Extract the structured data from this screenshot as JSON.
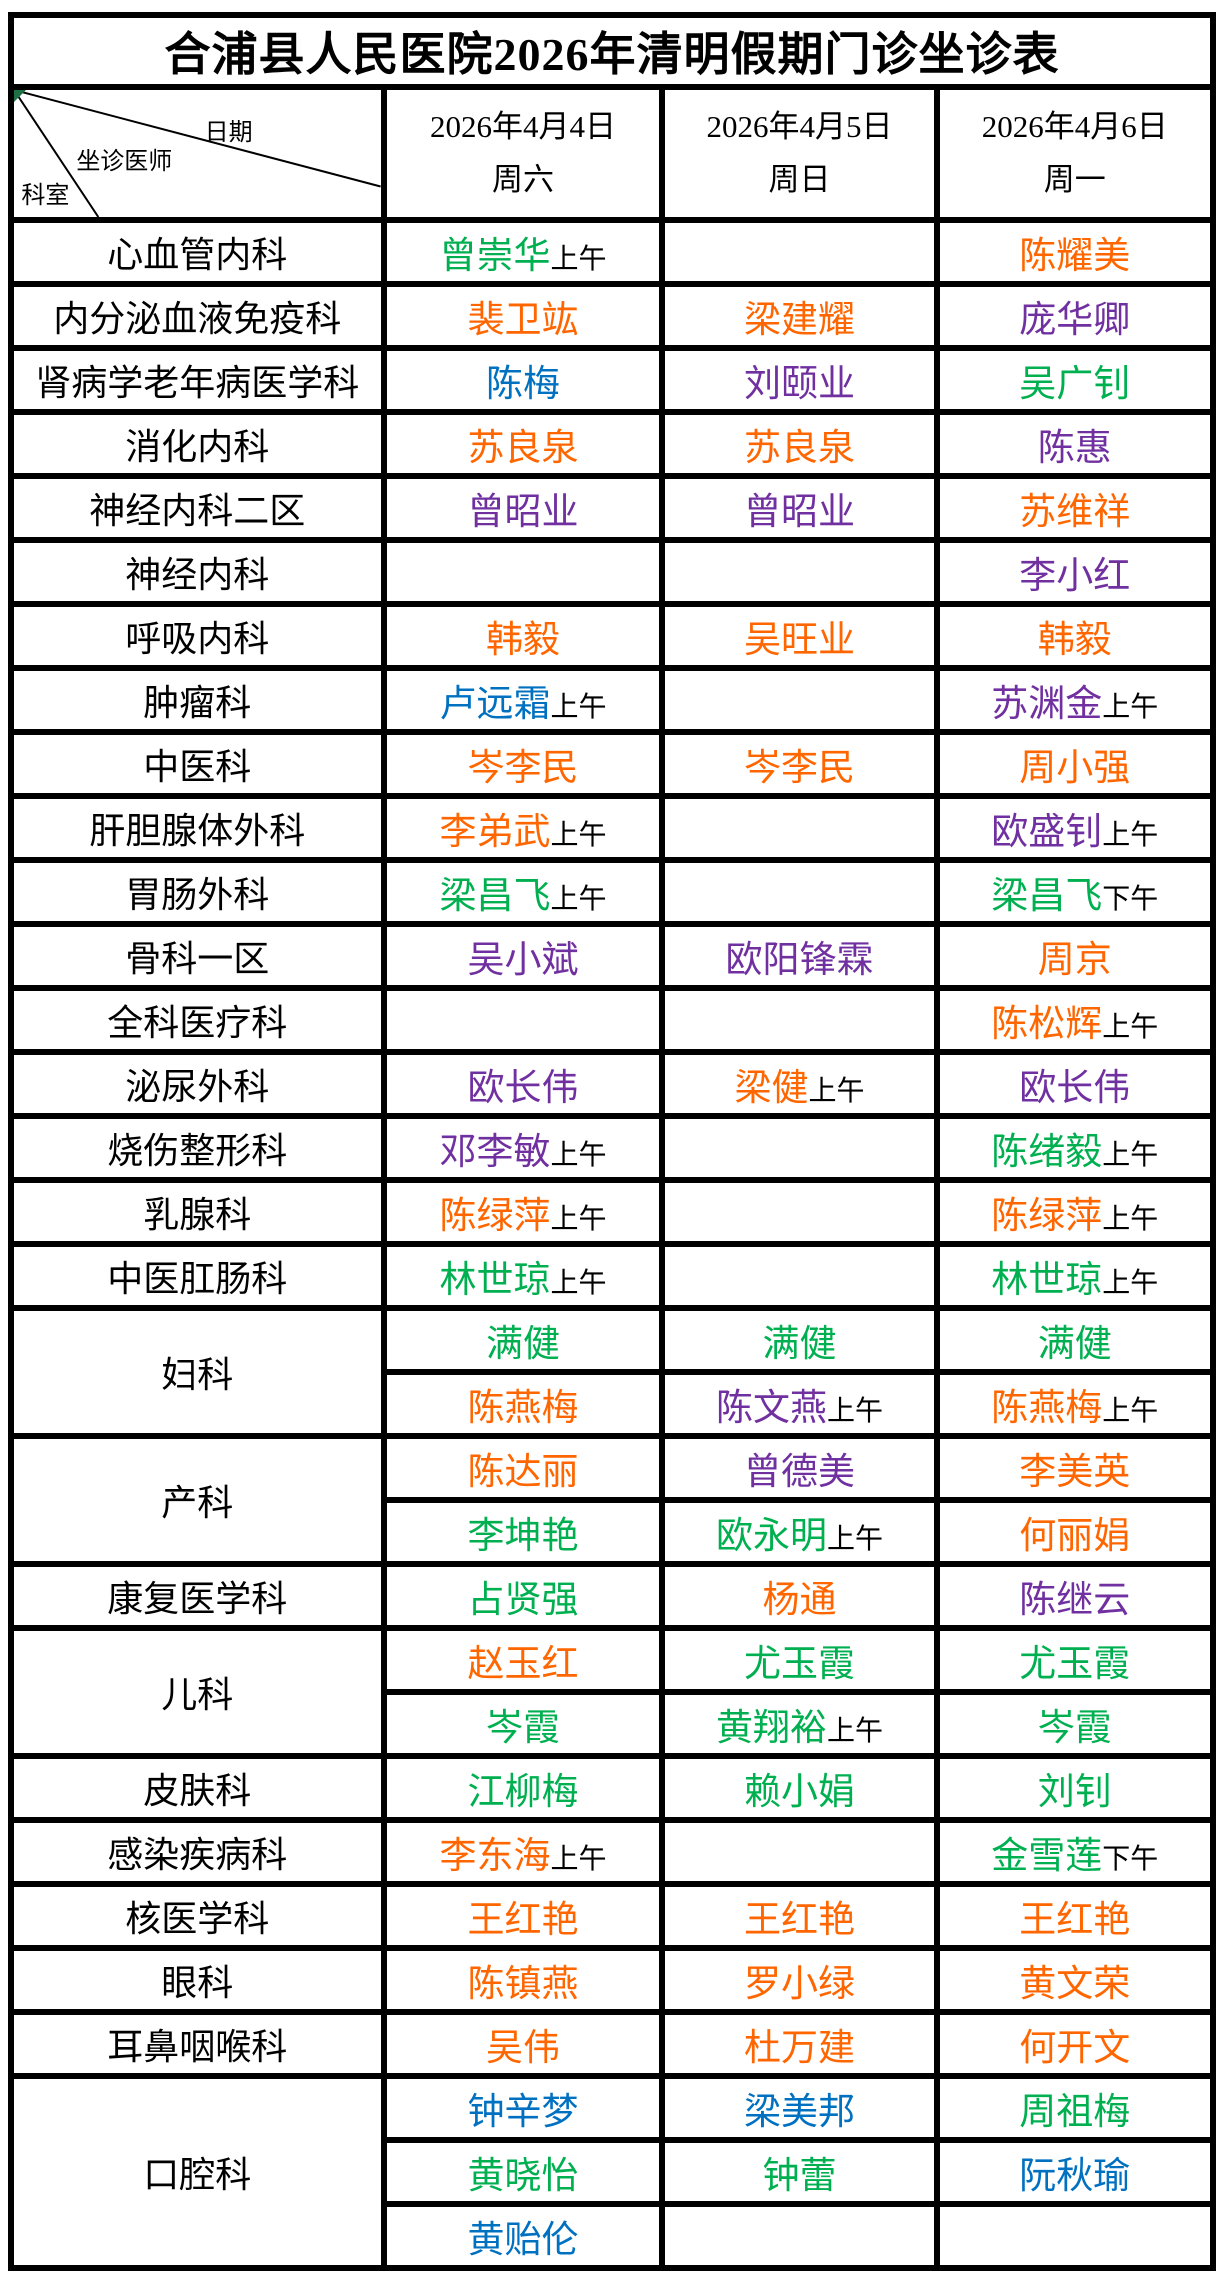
{
  "title": "合浦县人民医院2026年清明假期门诊坐诊表",
  "corner": {
    "date_label": "日期",
    "doctor_label": "坐诊医师",
    "dept_label": "科室"
  },
  "columns": [
    {
      "date": "2026年4月4日",
      "weekday": "周六"
    },
    {
      "date": "2026年4月5日",
      "weekday": "周日"
    },
    {
      "date": "2026年4月6日",
      "weekday": "周一"
    }
  ],
  "colors": {
    "orange": "#FF6600",
    "green": "#00B050",
    "purple": "#7030A0",
    "blue": "#0070C0"
  },
  "rows": [
    {
      "dept": "心血管内科",
      "subrows": [
        [
          {
            "name": "曾崇华",
            "color": "green",
            "suffix": "上午"
          },
          null,
          {
            "name": "陈耀美",
            "color": "orange"
          }
        ]
      ]
    },
    {
      "dept": "内分泌血液免疫科",
      "subrows": [
        [
          {
            "name": "裴卫竑",
            "color": "orange"
          },
          {
            "name": "梁建耀",
            "color": "orange"
          },
          {
            "name": "庞华卿",
            "color": "purple"
          }
        ]
      ]
    },
    {
      "dept": "肾病学老年病医学科",
      "subrows": [
        [
          {
            "name": "陈梅",
            "color": "blue"
          },
          {
            "name": "刘颐业",
            "color": "purple"
          },
          {
            "name": "吴广钊",
            "color": "green"
          }
        ]
      ]
    },
    {
      "dept": "消化内科",
      "subrows": [
        [
          {
            "name": "苏良泉",
            "color": "orange"
          },
          {
            "name": "苏良泉",
            "color": "orange"
          },
          {
            "name": "陈惠",
            "color": "purple"
          }
        ]
      ]
    },
    {
      "dept": "神经内科二区",
      "subrows": [
        [
          {
            "name": "曾昭业",
            "color": "purple"
          },
          {
            "name": "曾昭业",
            "color": "purple"
          },
          {
            "name": "苏维祥",
            "color": "orange"
          }
        ]
      ]
    },
    {
      "dept": "神经内科",
      "subrows": [
        [
          null,
          null,
          {
            "name": "李小红",
            "color": "purple"
          }
        ]
      ]
    },
    {
      "dept": "呼吸内科",
      "subrows": [
        [
          {
            "name": "韩毅",
            "color": "orange"
          },
          {
            "name": "吴旺业",
            "color": "orange"
          },
          {
            "name": "韩毅",
            "color": "orange"
          }
        ]
      ]
    },
    {
      "dept": "肿瘤科",
      "subrows": [
        [
          {
            "name": "卢远霜",
            "color": "blue",
            "suffix": "上午"
          },
          null,
          {
            "name": "苏渊金",
            "color": "purple",
            "suffix": "上午"
          }
        ]
      ]
    },
    {
      "dept": "中医科",
      "subrows": [
        [
          {
            "name": "岑李民",
            "color": "orange"
          },
          {
            "name": "岑李民",
            "color": "orange"
          },
          {
            "name": "周小强",
            "color": "orange"
          }
        ]
      ]
    },
    {
      "dept": "肝胆腺体外科",
      "subrows": [
        [
          {
            "name": "李弟武",
            "color": "orange",
            "suffix": "上午"
          },
          null,
          {
            "name": "欧盛钊",
            "color": "purple",
            "suffix": "上午"
          }
        ]
      ]
    },
    {
      "dept": "胃肠外科",
      "subrows": [
        [
          {
            "name": "梁昌飞",
            "color": "green",
            "suffix": "上午"
          },
          null,
          {
            "name": "梁昌飞",
            "color": "green",
            "suffix": "下午"
          }
        ]
      ]
    },
    {
      "dept": "骨科一区",
      "subrows": [
        [
          {
            "name": "吴小斌",
            "color": "purple"
          },
          {
            "name": "欧阳锋霖",
            "color": "purple"
          },
          {
            "name": "周京",
            "color": "orange"
          }
        ]
      ]
    },
    {
      "dept": "全科医疗科",
      "subrows": [
        [
          null,
          null,
          {
            "name": "陈松辉",
            "color": "orange",
            "suffix": "上午"
          }
        ]
      ]
    },
    {
      "dept": "泌尿外科",
      "subrows": [
        [
          {
            "name": "欧长伟",
            "color": "purple"
          },
          {
            "name": "梁健",
            "color": "orange",
            "suffix": "上午"
          },
          {
            "name": "欧长伟",
            "color": "purple"
          }
        ]
      ]
    },
    {
      "dept": "烧伤整形科",
      "subrows": [
        [
          {
            "name": "邓李敏",
            "color": "purple",
            "suffix": "上午"
          },
          null,
          {
            "name": "陈绪毅",
            "color": "green",
            "suffix": "上午"
          }
        ]
      ]
    },
    {
      "dept": "乳腺科",
      "subrows": [
        [
          {
            "name": "陈绿萍",
            "color": "orange",
            "suffix": "上午"
          },
          null,
          {
            "name": "陈绿萍",
            "color": "orange",
            "suffix": "上午"
          }
        ]
      ]
    },
    {
      "dept": "中医肛肠科",
      "subrows": [
        [
          {
            "name": "林世琼",
            "color": "green",
            "suffix": "上午"
          },
          null,
          {
            "name": "林世琼",
            "color": "green",
            "suffix": "上午"
          }
        ]
      ]
    },
    {
      "dept": "妇科",
      "subrows": [
        [
          {
            "name": "满健",
            "color": "green"
          },
          {
            "name": "满健",
            "color": "green"
          },
          {
            "name": "满健",
            "color": "green"
          }
        ],
        [
          {
            "name": "陈燕梅",
            "color": "orange"
          },
          {
            "name": "陈文燕",
            "color": "purple",
            "suffix": "上午"
          },
          {
            "name": "陈燕梅",
            "color": "orange",
            "suffix": "上午"
          }
        ]
      ]
    },
    {
      "dept": "产科",
      "subrows": [
        [
          {
            "name": "陈达丽",
            "color": "orange"
          },
          {
            "name": "曾德美",
            "color": "purple"
          },
          {
            "name": "李美英",
            "color": "orange"
          }
        ],
        [
          {
            "name": "李坤艳",
            "color": "green"
          },
          {
            "name": "欧永明",
            "color": "green",
            "suffix": "上午"
          },
          {
            "name": "何丽娟",
            "color": "orange"
          }
        ]
      ]
    },
    {
      "dept": "康复医学科",
      "subrows": [
        [
          {
            "name": "占贤强",
            "color": "green"
          },
          {
            "name": "杨通",
            "color": "orange"
          },
          {
            "name": "陈继云",
            "color": "purple"
          }
        ]
      ]
    },
    {
      "dept": "儿科",
      "subrows": [
        [
          {
            "name": "赵玉红",
            "color": "orange"
          },
          {
            "name": "尤玉霞",
            "color": "green"
          },
          {
            "name": "尤玉霞",
            "color": "green"
          }
        ],
        [
          {
            "name": "岑霞",
            "color": "green"
          },
          {
            "name": "黄翔裕",
            "color": "green",
            "suffix": "上午"
          },
          {
            "name": "岑霞",
            "color": "green"
          }
        ]
      ]
    },
    {
      "dept": "皮肤科",
      "subrows": [
        [
          {
            "name": "江柳梅",
            "color": "green"
          },
          {
            "name": "赖小娟",
            "color": "green"
          },
          {
            "name": "刘钊",
            "color": "green"
          }
        ]
      ]
    },
    {
      "dept": "感染疾病科",
      "subrows": [
        [
          {
            "name": "李东海",
            "color": "orange",
            "suffix": "上午"
          },
          null,
          {
            "name": "金雪莲",
            "color": "green",
            "suffix": "下午"
          }
        ]
      ]
    },
    {
      "dept": "核医学科",
      "subrows": [
        [
          {
            "name": "王红艳",
            "color": "orange"
          },
          {
            "name": "王红艳",
            "color": "orange"
          },
          {
            "name": "王红艳",
            "color": "orange"
          }
        ]
      ]
    },
    {
      "dept": "眼科",
      "subrows": [
        [
          {
            "name": "陈镇燕",
            "color": "orange"
          },
          {
            "name": "罗小绿",
            "color": "orange"
          },
          {
            "name": "黄文荣",
            "color": "orange"
          }
        ]
      ]
    },
    {
      "dept": "耳鼻咽喉科",
      "subrows": [
        [
          {
            "name": "吴伟",
            "color": "orange"
          },
          {
            "name": "杜万建",
            "color": "orange"
          },
          {
            "name": "何开文",
            "color": "orange"
          }
        ]
      ]
    },
    {
      "dept": "口腔科",
      "subrows": [
        [
          {
            "name": "钟辛梦",
            "color": "blue"
          },
          {
            "name": "梁美邦",
            "color": "blue"
          },
          {
            "name": "周祖梅",
            "color": "green"
          }
        ],
        [
          {
            "name": "黄晓怡",
            "color": "green"
          },
          {
            "name": "钟蕾",
            "color": "green"
          },
          {
            "name": "阮秋瑜",
            "color": "blue"
          }
        ],
        [
          {
            "name": "黄贻伦",
            "color": "blue"
          },
          null,
          null
        ]
      ]
    }
  ]
}
